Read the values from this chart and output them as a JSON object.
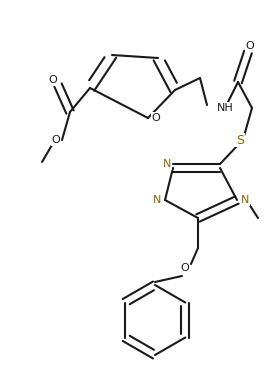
{
  "bg": "#ffffff",
  "lc": "#1a1a1a",
  "nc": "#8B6500",
  "sc": "#8B6500",
  "lw": 1.5,
  "fs": 8.0,
  "xlim": [
    0,
    268
  ],
  "ylim": [
    0,
    380
  ]
}
